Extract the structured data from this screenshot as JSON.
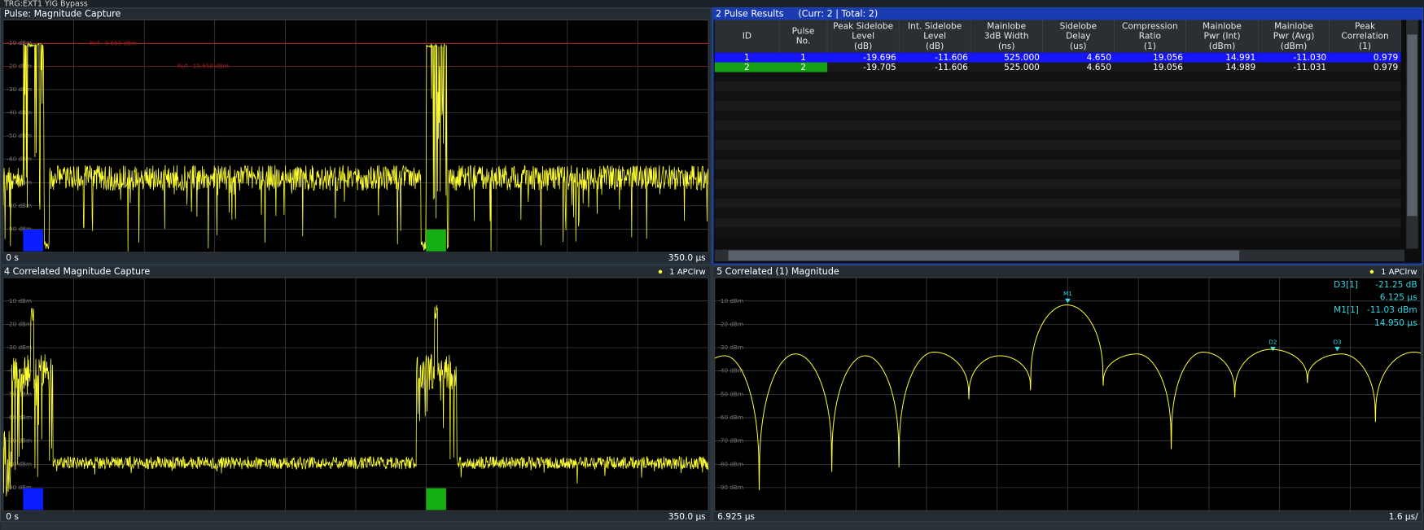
{
  "status_bar": {
    "text": "TRG:EXT1  YIG Bypass"
  },
  "panels": [
    {
      "title": "Pulse: Magnitude Capture",
      "y_labels": [
        "-10 dBm",
        "-20 dBm",
        "-30 dBm",
        "-40 dBm",
        "-50 dBm",
        "-60 dBm",
        "-70 dBm",
        "-80 dBm",
        "-90 dBm"
      ],
      "ref_labels": [
        "Ref: -9.658 dBm",
        "Ref: -19.658 dBm"
      ],
      "x_start": "0 s",
      "x_end": "350.0 µs"
    },
    {
      "title": "4 Correlated Magnitude Capture",
      "legend": "1 APClrw",
      "y_labels": [
        "-10 dBm",
        "-20 dBm",
        "-30 dBm",
        "-40 dBm",
        "-50 dBm",
        "-60 dBm",
        "-70 dBm",
        "-80 dBm",
        "-90 dBm"
      ],
      "x_start": "0 s",
      "x_end": "350.0 µs"
    },
    {
      "title": "5 Correlated (1) Magnitude",
      "legend": "1 APClrw",
      "y_labels": [
        "-10 dBm",
        "-20 dBm",
        "-30 dBm",
        "-40 dBm",
        "-50 dBm",
        "-60 dBm",
        "-70 dBm",
        "-80 dBm",
        "-90 dBm"
      ],
      "markers": [
        "M1",
        "D2",
        "D3"
      ],
      "marker_info": [
        [
          "D3[1]",
          "-21.25 dB"
        ],
        [
          "",
          "6.125 µs"
        ],
        [
          "M1[1]",
          "-11.03 dBm"
        ],
        [
          "",
          "14.950 µs"
        ]
      ],
      "x_start": "6.925 µs",
      "x_end": "1.6 µs/"
    }
  ],
  "results": {
    "title": "2 Pulse Results",
    "status": "(Curr: 2 | Total: 2)",
    "columns": [
      [
        "ID"
      ],
      [
        "Pulse",
        "No."
      ],
      [
        "Peak Sidelobe",
        "Level",
        "(dB)"
      ],
      [
        "Int. Sidelobe",
        "Level",
        "(dB)"
      ],
      [
        "Mainlobe",
        "3dB Width",
        "(ns)"
      ],
      [
        "Sidelobe",
        "Delay",
        "(us)"
      ],
      [
        "Compression",
        "Ratio",
        "(1)"
      ],
      [
        "Mainlobe",
        "Pwr (Int)",
        "(dBm)"
      ],
      [
        "Mainlobe",
        "Pwr (Avg)",
        "(dBm)"
      ],
      [
        "Peak",
        "Correlation",
        "(1)"
      ]
    ],
    "rows": [
      [
        "1",
        "1",
        "-19.696",
        "-11.606",
        "525.000",
        "4.650",
        "19.056",
        "14.991",
        "-11.030",
        "0.979"
      ],
      [
        "2",
        "2",
        "-19.705",
        "-11.606",
        "525.000",
        "4.650",
        "19.056",
        "14.989",
        "-11.031",
        "0.979"
      ]
    ]
  }
}
